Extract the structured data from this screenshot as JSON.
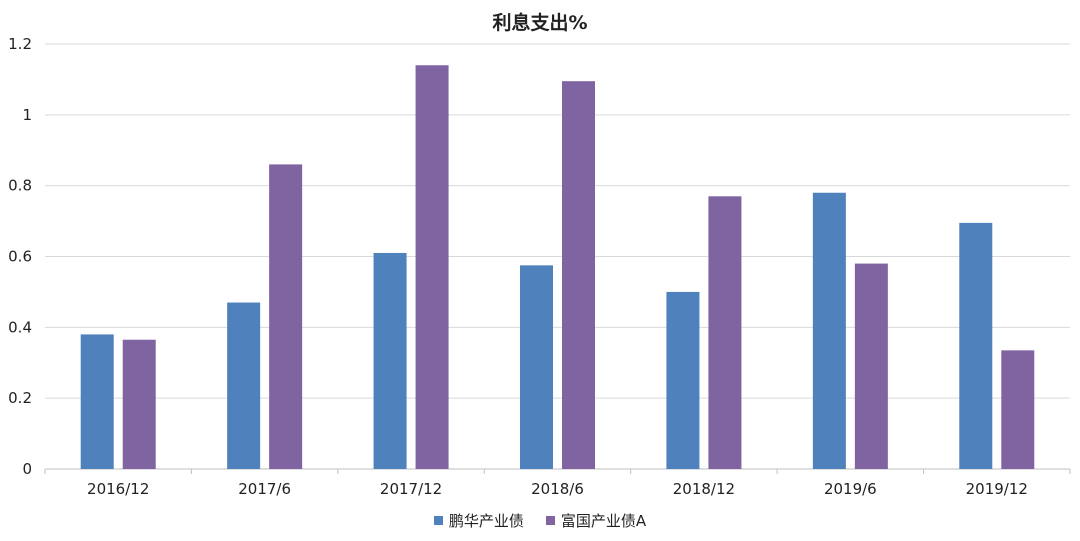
{
  "chart_data": {
    "type": "bar",
    "title": "利息支出%",
    "xlabel": "",
    "ylabel": "",
    "categories": [
      "2016/12",
      "2017/6",
      "2017/12",
      "2018/6",
      "2018/12",
      "2019/6",
      "2019/12"
    ],
    "series": [
      {
        "name": "鹏华产业债",
        "color": "#4f81bd",
        "values": [
          0.38,
          0.47,
          0.61,
          0.575,
          0.5,
          0.78,
          0.695
        ]
      },
      {
        "name": "富国产业债A",
        "color": "#8064a2",
        "values": [
          0.365,
          0.86,
          1.14,
          1.095,
          0.77,
          0.58,
          0.335
        ]
      }
    ],
    "ylim": [
      0,
      1.2
    ],
    "yticks": [
      0,
      0.2,
      0.4,
      0.6,
      0.8,
      1,
      1.2
    ],
    "ytick_labels": [
      "0",
      "0.2",
      "0.4",
      "0.6",
      "0.8",
      "1",
      "1.2"
    ],
    "grid": true,
    "legend_position": "bottom"
  }
}
